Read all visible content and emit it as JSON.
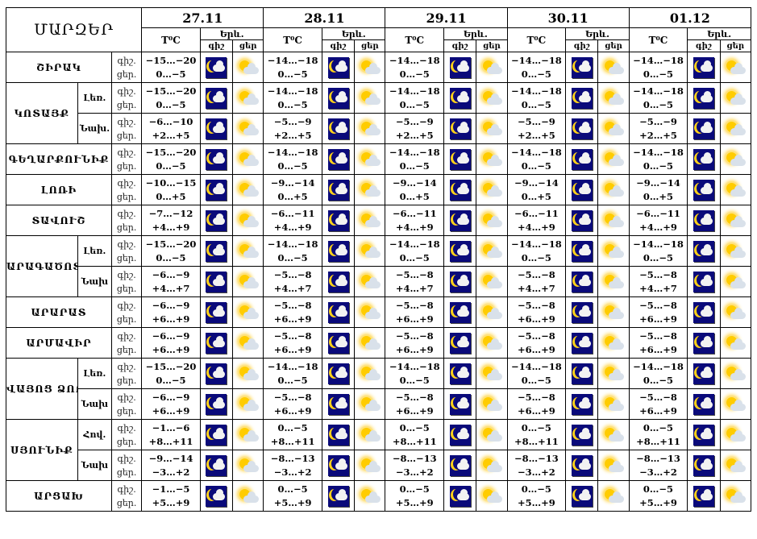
{
  "header": {
    "region_title": "ՄԱՐԶԵՐ",
    "temp_label": "T⁰C",
    "phenomena_label": "Երև.",
    "night_label": "գիշ",
    "day_label": "ցեր",
    "dates": [
      "27.11",
      "28.11",
      "29.11",
      "30.11",
      "01.12"
    ]
  },
  "icons": {
    "night": "moon-cloud-icon",
    "day": "sun-cloud-icon"
  },
  "colors": {
    "night_icon_bg": "#0a0a7a",
    "moon": "#ffd21a",
    "sun": "#ffcc00"
  },
  "rows": [
    {
      "region": "ՇԻՐԱԿ",
      "sub": "",
      "lbl_night": "գիշ.",
      "lbl_day": "ցեր.",
      "temps": [
        [
          "−15…−20",
          "0…−5"
        ],
        [
          "−14…−18",
          "0…−5"
        ],
        [
          "−14…−18",
          "0…−5"
        ],
        [
          "−14…−18",
          "0…−5"
        ],
        [
          "−14…−18",
          "0…−5"
        ]
      ]
    },
    {
      "region": "ԿՈՏԱՅՔ",
      "sub": "Լեռ.",
      "lbl_night": "գիշ.",
      "lbl_day": "ցեր.",
      "temps": [
        [
          "−15…−20",
          "0…−5"
        ],
        [
          "−14…−18",
          "0…−5"
        ],
        [
          "−14…−18",
          "0…−5"
        ],
        [
          "−14…−18",
          "0…−5"
        ],
        [
          "−14…−18",
          "0…−5"
        ]
      ]
    },
    {
      "region": "",
      "sub": "Նախ.",
      "lbl_night": "գիշ.",
      "lbl_day": "ցեր.",
      "temps": [
        [
          "−6…−10",
          "+2…+5"
        ],
        [
          "−5…−9",
          "+2…+5"
        ],
        [
          "−5…−9",
          "+2…+5"
        ],
        [
          "−5…−9",
          "+2…+5"
        ],
        [
          "−5…−9",
          "+2…+5"
        ]
      ]
    },
    {
      "region": "ԳԵՂԱՐՔՈՒՆԻՔ",
      "sub": "",
      "lbl_night": "գիշ.",
      "lbl_day": "ցեր.",
      "temps": [
        [
          "−15…−20",
          "0…−5"
        ],
        [
          "−14…−18",
          "0…−5"
        ],
        [
          "−14…−18",
          "0…−5"
        ],
        [
          "−14…−18",
          "0…−5"
        ],
        [
          "−14…−18",
          "0…−5"
        ]
      ]
    },
    {
      "region": "ԼՈՌԻ",
      "sub": "",
      "lbl_night": "գիշ.",
      "lbl_day": "ցեր.",
      "temps": [
        [
          "−10…−15",
          "0…+5"
        ],
        [
          "−9…−14",
          "0…+5"
        ],
        [
          "−9…−14",
          "0…+5"
        ],
        [
          "−9…−14",
          "0…+5"
        ],
        [
          "−9…−14",
          "0…+5"
        ]
      ]
    },
    {
      "region": "ՏԱՎՈՒՇ",
      "sub": "",
      "lbl_night": "գիշ.",
      "lbl_day": "ցեր.",
      "temps": [
        [
          "−7…−12",
          "+4…+9"
        ],
        [
          "−6…−11",
          "+4…+9"
        ],
        [
          "−6…−11",
          "+4…+9"
        ],
        [
          "−6…−11",
          "+4…+9"
        ],
        [
          "−6…−11",
          "+4…+9"
        ]
      ]
    },
    {
      "region": "ԱՐԱԳԱԾՈՏՆ",
      "sub": "Լեռ.",
      "lbl_night": "գիշ.",
      "lbl_day": "ցեր.",
      "temps": [
        [
          "−15…−20",
          "0…−5"
        ],
        [
          "−14…−18",
          "0…−5"
        ],
        [
          "−14…−18",
          "0…−5"
        ],
        [
          "−14…−18",
          "0…−5"
        ],
        [
          "−14…−18",
          "0…−5"
        ]
      ]
    },
    {
      "region": "",
      "sub": "Նախ",
      "lbl_night": "գիշ.",
      "lbl_day": "ցեր.",
      "temps": [
        [
          "−6…−9",
          "+4…+7"
        ],
        [
          "−5…−8",
          "+4…+7"
        ],
        [
          "−5…−8",
          "+4…+7"
        ],
        [
          "−5…−8",
          "+4…+7"
        ],
        [
          "−5…−8",
          "+4…+7"
        ]
      ]
    },
    {
      "region": "ԱՐԱՐԱՏ",
      "sub": "",
      "lbl_night": "գիշ.",
      "lbl_day": "ցեր.",
      "temps": [
        [
          "−6…−9",
          "+6…+9"
        ],
        [
          "−5…−8",
          "+6…+9"
        ],
        [
          "−5…−8",
          "+6…+9"
        ],
        [
          "−5…−8",
          "+6…+9"
        ],
        [
          "−5…−8",
          "+6…+9"
        ]
      ]
    },
    {
      "region": "ԱՐՄԱՎԻՐ",
      "sub": "",
      "lbl_night": "գիշ.",
      "lbl_day": "ցեր.",
      "temps": [
        [
          "−6…−9",
          "+6…+9"
        ],
        [
          "−5…−8",
          "+6…+9"
        ],
        [
          "−5…−8",
          "+6…+9"
        ],
        [
          "−5…−8",
          "+6…+9"
        ],
        [
          "−5…−8",
          "+6…+9"
        ]
      ]
    },
    {
      "region": "ՎԱՅՈՑ ՁՈՐ",
      "sub": "Լեռ.",
      "lbl_night": "գիշ.",
      "lbl_day": "ցեր.",
      "temps": [
        [
          "−15…−20",
          "0…−5"
        ],
        [
          "−14…−18",
          "0…−5"
        ],
        [
          "−14…−18",
          "0…−5"
        ],
        [
          "−14…−18",
          "0…−5"
        ],
        [
          "−14…−18",
          "0…−5"
        ]
      ]
    },
    {
      "region": "",
      "sub": "Նախ",
      "lbl_night": "գիշ.",
      "lbl_day": "ցեր.",
      "temps": [
        [
          "−6…−9",
          "+6…+9"
        ],
        [
          "−5…−8",
          "+6…+9"
        ],
        [
          "−5…−8",
          "+6…+9"
        ],
        [
          "−5…−8",
          "+6…+9"
        ],
        [
          "−5…−8",
          "+6…+9"
        ]
      ]
    },
    {
      "region": "ՍՅՈՒՆԻՔ",
      "sub": "Հով.",
      "lbl_night": "գիշ.",
      "lbl_day": "ցեր.",
      "temps": [
        [
          "−1…−6",
          "+8…+11"
        ],
        [
          "0…−5",
          "+8…+11"
        ],
        [
          "0…−5",
          "+8…+11"
        ],
        [
          "0…−5",
          "+8…+11"
        ],
        [
          "0…−5",
          "+8…+11"
        ]
      ]
    },
    {
      "region": "",
      "sub": "Նախ",
      "lbl_night": "գիշ.",
      "lbl_day": "ցեր.",
      "temps": [
        [
          "−9…−14",
          "−3…+2"
        ],
        [
          "−8…−13",
          "−3…+2"
        ],
        [
          "−8…−13",
          "−3…+2"
        ],
        [
          "−8…−13",
          "−3…+2"
        ],
        [
          "−8…−13",
          "−3…+2"
        ]
      ]
    },
    {
      "region": "ԱՐՑԱԽ",
      "sub": "",
      "lbl_night": "գիշ.",
      "lbl_day": "ցեր.",
      "temps": [
        [
          "−1…−5",
          "+5…+9"
        ],
        [
          "0…−5",
          "+5…+9"
        ],
        [
          "0…−5",
          "+5…+9"
        ],
        [
          "0…−5",
          "+5…+9"
        ],
        [
          "0…−5",
          "+5…+9"
        ]
      ]
    }
  ]
}
